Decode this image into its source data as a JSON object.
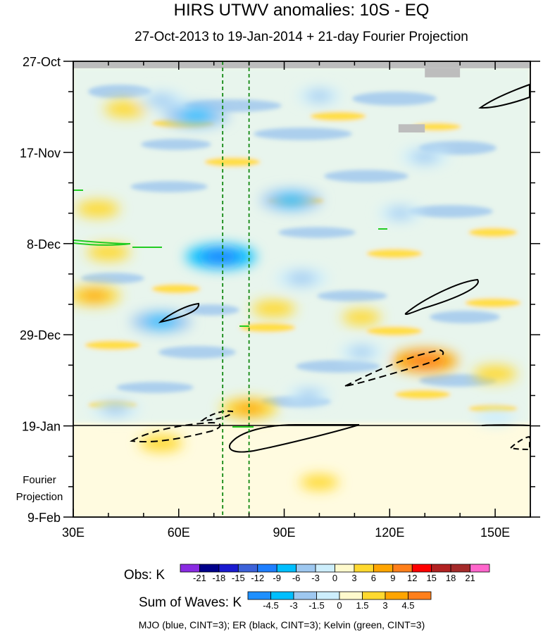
{
  "chart_data": {
    "type": "heatmap",
    "title": "HIRS UTWV anomalies: 10S - EQ",
    "subtitle": "27-Oct-2013 to 19-Jan-2014 + 21-day Fourier Projection",
    "x_ticks": [
      {
        "lon": 30,
        "label": "30E"
      },
      {
        "lon": 60,
        "label": "60E"
      },
      {
        "lon": 90,
        "label": "90E"
      },
      {
        "lon": 120,
        "label": "120E"
      },
      {
        "lon": 150,
        "label": "150E"
      }
    ],
    "xlim": [
      30,
      160
    ],
    "y_ticks": [
      {
        "day": 0,
        "label": "27-Oct"
      },
      {
        "day": 21,
        "label": "17-Nov"
      },
      {
        "day": 42,
        "label": "8-Dec"
      },
      {
        "day": 63,
        "label": "29-Dec"
      },
      {
        "day": 84,
        "label": "19-Jan"
      },
      {
        "day": 105,
        "label": "9-Feb"
      }
    ],
    "ylim": [
      0,
      105
    ],
    "projection_label_line1": "Fourier",
    "projection_label_line2": "Projection",
    "projection_start_day": 84,
    "reference_lon_lines": [
      72.5,
      80
    ],
    "obs_colorbar": {
      "label": "Obs: K",
      "levels": [
        -21,
        -18,
        -15,
        -12,
        -9,
        -6,
        -3,
        0,
        3,
        6,
        9,
        12,
        15,
        18,
        21
      ],
      "colors": [
        "#8a2be2",
        "#00008b",
        "#1a1ad0",
        "#3d62d9",
        "#1e7fff",
        "#00bfff",
        "#9ec8f0",
        "#cdeefc",
        "#fffacd",
        "#ffd92f",
        "#ffa500",
        "#ff7f1a",
        "#ff0000",
        "#b22222",
        "#a52a2a",
        "#ff66cc"
      ]
    },
    "waves_colorbar": {
      "label": "Sum of Waves: K",
      "levels": [
        -4.5,
        -3,
        -1.5,
        0,
        1.5,
        3,
        4.5
      ],
      "colors": [
        "#1e90ff",
        "#00bfff",
        "#9ec8f0",
        "#cdeefc",
        "#fffacd",
        "#ffd92f",
        "#ffa500",
        "#ff7f1a"
      ]
    },
    "obs_anomalies": [
      {
        "lon": 45,
        "day": 11,
        "value": 4
      },
      {
        "lon": 65,
        "day": 12.5,
        "value": -9
      },
      {
        "lon": 55,
        "day": 9,
        "value": -5
      },
      {
        "lon": 100,
        "day": 8,
        "value": -4
      },
      {
        "lon": 130,
        "day": 22,
        "value": -5
      },
      {
        "lon": 92,
        "day": 32,
        "value": -8
      },
      {
        "lon": 123,
        "day": 35,
        "value": -4
      },
      {
        "lon": 37,
        "day": 34,
        "value": 4
      },
      {
        "lon": 40,
        "day": 44,
        "value": 4
      },
      {
        "lon": 72,
        "day": 45,
        "value": -10
      },
      {
        "lon": 95,
        "day": 50,
        "value": -6
      },
      {
        "lon": 36,
        "day": 54,
        "value": 6
      },
      {
        "lon": 55,
        "day": 60,
        "value": -8
      },
      {
        "lon": 87,
        "day": 57,
        "value": 4
      },
      {
        "lon": 112,
        "day": 59,
        "value": 3
      },
      {
        "lon": 130,
        "day": 69,
        "value": 9
      },
      {
        "lon": 112,
        "day": 67,
        "value": -4
      },
      {
        "lon": 80,
        "day": 80,
        "value": 7
      },
      {
        "lon": 42,
        "day": 80,
        "value": -5
      },
      {
        "lon": 97,
        "day": 77,
        "value": -4
      },
      {
        "lon": 150,
        "day": 72,
        "value": 4
      },
      {
        "lon": 55,
        "day": 88,
        "value": 4
      },
      {
        "lon": 100,
        "day": 97,
        "value": 3
      },
      {
        "lon": 150,
        "day": 82,
        "value": -3
      }
    ],
    "missing_data": [
      {
        "lon0": 30,
        "lon1": 160,
        "day0": 0,
        "day1": 1.6
      },
      {
        "lon0": 130,
        "lon1": 140,
        "day0": 1.6,
        "day1": 3.7
      },
      {
        "lon0": 122.5,
        "lon1": 130,
        "day0": 14.5,
        "day1": 16.4
      }
    ],
    "legend_note": "MJO (blue, CINT=3); ER (black, CINT=3); Kelvin (green, CINT=3)"
  }
}
